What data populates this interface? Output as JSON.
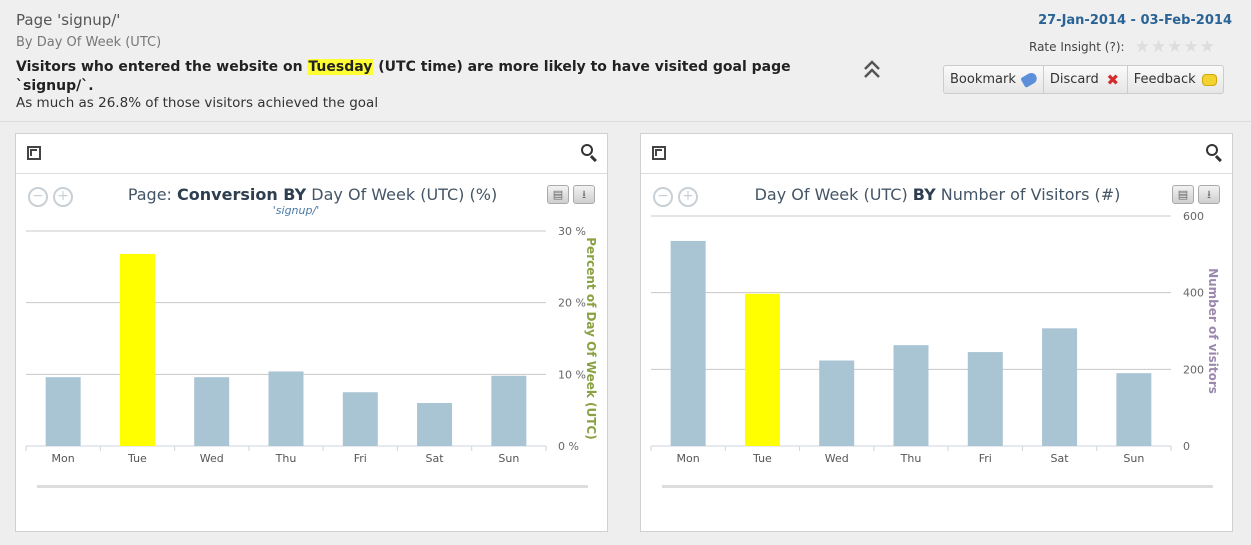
{
  "header": {
    "title": "Page 'signup/'",
    "subtitle": "By Day Of Week (UTC)",
    "insight_pre": "Visitors who entered the website on ",
    "insight_highlight": "Tuesday",
    "insight_mid": " (UTC time) are more likely to have visited goal page",
    "insight_page": "`signup/`.",
    "achieved": "As much as 26.8% of those visitors achieved the goal",
    "date_range": "27-Jan-2014 - 03-Feb-2014",
    "rate_label": "Rate Insight (?):",
    "stars": 5
  },
  "actions": {
    "bookmark": "Bookmark",
    "discard": "Discard",
    "feedback": "Feedback"
  },
  "colors": {
    "bar": "#a9c4d3",
    "highlight": "#ffff00",
    "left_axis": "#8aa142",
    "right_axis": "#9b89ad"
  },
  "chart_data": [
    {
      "type": "bar",
      "title_pre": "Page: ",
      "title_bold": "Conversion BY",
      "title_post": " Day Of Week (UTC) (%)",
      "subtitle": "'signup/'",
      "categories": [
        "Mon",
        "Tue",
        "Wed",
        "Thu",
        "Fri",
        "Sat",
        "Sun"
      ],
      "values": [
        9.6,
        26.8,
        9.6,
        10.4,
        7.5,
        6.0,
        9.8
      ],
      "highlight_index": 1,
      "ylim": [
        0,
        30
      ],
      "yticks": [
        0,
        10,
        20,
        30
      ],
      "ytick_labels": [
        "0 %",
        "10 %",
        "20 %",
        "30 %"
      ],
      "ylabel": "Percent of Day Of Week (UTC)",
      "grid": true
    },
    {
      "type": "bar",
      "title_pre": "Day Of Week (UTC) ",
      "title_bold": "BY",
      "title_post": " Number of Visitors (#)",
      "subtitle": "",
      "categories": [
        "Mon",
        "Tue",
        "Wed",
        "Thu",
        "Fri",
        "Sat",
        "Sun"
      ],
      "values": [
        535,
        397,
        223,
        263,
        245,
        307,
        190
      ],
      "highlight_index": 1,
      "ylim": [
        0,
        600
      ],
      "yticks": [
        0,
        200,
        400,
        600
      ],
      "ytick_labels": [
        "0",
        "200",
        "400",
        "600"
      ],
      "ylabel": "Number of visitors",
      "grid": true
    }
  ]
}
